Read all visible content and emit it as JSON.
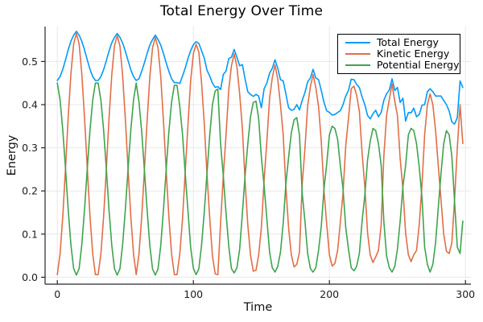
{
  "chart_data": {
    "type": "line",
    "title": "Total Energy Over Time",
    "xlabel": "Time",
    "ylabel": "Energy",
    "xlim": [
      -9,
      304
    ],
    "ylim": [
      -0.016,
      0.581
    ],
    "xticks": [
      0,
      100,
      200,
      300
    ],
    "xtick_labels": [
      "0",
      "100",
      "200",
      "300"
    ],
    "yticks": [
      0.0,
      0.1,
      0.2,
      0.3,
      0.4,
      0.5
    ],
    "ytick_labels": [
      "0.0",
      "0.1",
      "0.2",
      "0.3",
      "0.4",
      "0.5"
    ],
    "grid": true,
    "legend_position": "top-right",
    "grid_color": "#e8e8e8",
    "axis_color": "#26262a",
    "x": [
      0,
      2,
      4,
      6,
      8,
      10,
      12,
      14,
      16,
      18,
      20,
      22,
      24,
      26,
      28,
      30,
      32,
      34,
      36,
      38,
      40,
      42,
      44,
      46,
      48,
      50,
      52,
      54,
      56,
      58,
      60,
      62,
      64,
      66,
      68,
      70,
      72,
      74,
      76,
      78,
      80,
      82,
      84,
      86,
      88,
      90,
      92,
      94,
      96,
      98,
      100,
      102,
      104,
      106,
      108,
      110,
      112,
      114,
      116,
      118,
      120,
      122,
      124,
      126,
      128,
      130,
      132,
      134,
      136,
      138,
      140,
      142,
      144,
      146,
      148,
      150,
      152,
      154,
      156,
      158,
      160,
      162,
      164,
      166,
      168,
      170,
      172,
      174,
      176,
      178,
      180,
      182,
      184,
      186,
      188,
      190,
      192,
      194,
      196,
      198,
      200,
      202,
      204,
      206,
      208,
      210,
      212,
      214,
      216,
      218,
      220,
      222,
      224,
      226,
      228,
      230,
      232,
      234,
      236,
      238,
      240,
      242,
      244,
      246,
      248,
      250,
      252,
      254,
      256,
      258,
      260,
      262,
      264,
      266,
      268,
      270,
      272,
      274,
      276,
      278,
      280,
      282,
      284,
      286,
      288,
      290,
      292,
      294,
      296,
      298
    ],
    "series": [
      {
        "name": "Total Energy",
        "color": "#009af9",
        "values": [
          0.456,
          0.465,
          0.482,
          0.504,
          0.527,
          0.547,
          0.561,
          0.57,
          0.561,
          0.547,
          0.527,
          0.504,
          0.482,
          0.465,
          0.456,
          0.456,
          0.465,
          0.481,
          0.502,
          0.524,
          0.543,
          0.556,
          0.565,
          0.556,
          0.543,
          0.524,
          0.502,
          0.481,
          0.465,
          0.456,
          0.46,
          0.477,
          0.497,
          0.519,
          0.538,
          0.551,
          0.561,
          0.551,
          0.538,
          0.519,
          0.497,
          0.477,
          0.46,
          0.451,
          0.451,
          0.449,
          0.466,
          0.485,
          0.507,
          0.525,
          0.539,
          0.546,
          0.542,
          0.525,
          0.508,
          0.48,
          0.466,
          0.45,
          0.44,
          0.442,
          0.435,
          0.47,
          0.478,
          0.507,
          0.51,
          0.528,
          0.51,
          0.49,
          0.493,
          0.46,
          0.43,
          0.424,
          0.419,
          0.424,
          0.42,
          0.393,
          0.437,
          0.45,
          0.473,
          0.484,
          0.504,
          0.485,
          0.458,
          0.455,
          0.425,
          0.393,
          0.387,
          0.389,
          0.4,
          0.388,
          0.41,
          0.428,
          0.453,
          0.462,
          0.482,
          0.462,
          0.458,
          0.433,
          0.405,
          0.386,
          0.382,
          0.376,
          0.377,
          0.382,
          0.386,
          0.4,
          0.42,
          0.433,
          0.459,
          0.458,
          0.447,
          0.44,
          0.418,
          0.4,
          0.375,
          0.367,
          0.379,
          0.387,
          0.372,
          0.382,
          0.41,
          0.425,
          0.434,
          0.46,
          0.433,
          0.44,
          0.405,
          0.415,
          0.362,
          0.382,
          0.381,
          0.392,
          0.372,
          0.377,
          0.399,
          0.4,
          0.43,
          0.437,
          0.43,
          0.42,
          0.42,
          0.42,
          0.41,
          0.4,
          0.385,
          0.36,
          0.355,
          0.37,
          0.455,
          0.44
        ]
      },
      {
        "name": "Kinetic Energy",
        "color": "#e26e46",
        "values": [
          0.006,
          0.054,
          0.141,
          0.253,
          0.37,
          0.472,
          0.541,
          0.565,
          0.541,
          0.472,
          0.37,
          0.253,
          0.141,
          0.054,
          0.006,
          0.006,
          0.054,
          0.14,
          0.251,
          0.367,
          0.468,
          0.536,
          0.56,
          0.536,
          0.468,
          0.367,
          0.251,
          0.14,
          0.054,
          0.006,
          0.053,
          0.139,
          0.249,
          0.364,
          0.464,
          0.532,
          0.556,
          0.532,
          0.464,
          0.364,
          0.249,
          0.139,
          0.053,
          0.006,
          0.006,
          0.053,
          0.134,
          0.245,
          0.353,
          0.455,
          0.518,
          0.54,
          0.522,
          0.45,
          0.358,
          0.24,
          0.138,
          0.05,
          0.008,
          0.006,
          0.125,
          0.235,
          0.33,
          0.435,
          0.49,
          0.518,
          0.488,
          0.425,
          0.345,
          0.225,
          0.122,
          0.052,
          0.014,
          0.016,
          0.052,
          0.115,
          0.225,
          0.315,
          0.415,
          0.462,
          0.492,
          0.46,
          0.4,
          0.33,
          0.21,
          0.115,
          0.052,
          0.024,
          0.03,
          0.058,
          0.215,
          0.298,
          0.398,
          0.442,
          0.47,
          0.44,
          0.396,
          0.315,
          0.2,
          0.124,
          0.052,
          0.026,
          0.032,
          0.062,
          0.128,
          0.195,
          0.305,
          0.368,
          0.437,
          0.443,
          0.422,
          0.385,
          0.288,
          0.21,
          0.103,
          0.052,
          0.034,
          0.047,
          0.062,
          0.122,
          0.28,
          0.375,
          0.412,
          0.448,
          0.408,
          0.375,
          0.275,
          0.205,
          0.102,
          0.052,
          0.036,
          0.052,
          0.062,
          0.122,
          0.214,
          0.33,
          0.4,
          0.425,
          0.4,
          0.34,
          0.26,
          0.18,
          0.1,
          0.06,
          0.055,
          0.08,
          0.18,
          0.3,
          0.4,
          0.31
        ]
      },
      {
        "name": "Potential Energy",
        "color": "#3da44d",
        "values": [
          0.45,
          0.411,
          0.341,
          0.251,
          0.157,
          0.075,
          0.02,
          0.005,
          0.02,
          0.075,
          0.157,
          0.251,
          0.341,
          0.411,
          0.45,
          0.45,
          0.411,
          0.341,
          0.251,
          0.157,
          0.075,
          0.02,
          0.005,
          0.02,
          0.075,
          0.157,
          0.251,
          0.341,
          0.411,
          0.45,
          0.407,
          0.338,
          0.248,
          0.155,
          0.074,
          0.019,
          0.005,
          0.019,
          0.074,
          0.155,
          0.248,
          0.338,
          0.407,
          0.445,
          0.445,
          0.396,
          0.332,
          0.24,
          0.154,
          0.07,
          0.021,
          0.006,
          0.02,
          0.075,
          0.15,
          0.24,
          0.328,
          0.4,
          0.432,
          0.436,
          0.31,
          0.235,
          0.148,
          0.072,
          0.02,
          0.01,
          0.022,
          0.065,
          0.148,
          0.235,
          0.308,
          0.372,
          0.405,
          0.408,
          0.368,
          0.278,
          0.212,
          0.135,
          0.058,
          0.022,
          0.012,
          0.025,
          0.058,
          0.125,
          0.215,
          0.278,
          0.335,
          0.365,
          0.37,
          0.33,
          0.195,
          0.13,
          0.055,
          0.02,
          0.012,
          0.022,
          0.062,
          0.118,
          0.205,
          0.262,
          0.33,
          0.35,
          0.345,
          0.32,
          0.258,
          0.205,
          0.115,
          0.065,
          0.022,
          0.015,
          0.025,
          0.055,
          0.13,
          0.19,
          0.272,
          0.315,
          0.345,
          0.34,
          0.31,
          0.26,
          0.13,
          0.05,
          0.022,
          0.012,
          0.025,
          0.065,
          0.13,
          0.21,
          0.26,
          0.33,
          0.345,
          0.34,
          0.31,
          0.255,
          0.185,
          0.07,
          0.03,
          0.012,
          0.03,
          0.08,
          0.16,
          0.24,
          0.31,
          0.34,
          0.33,
          0.28,
          0.175,
          0.07,
          0.055,
          0.13
        ]
      }
    ]
  }
}
